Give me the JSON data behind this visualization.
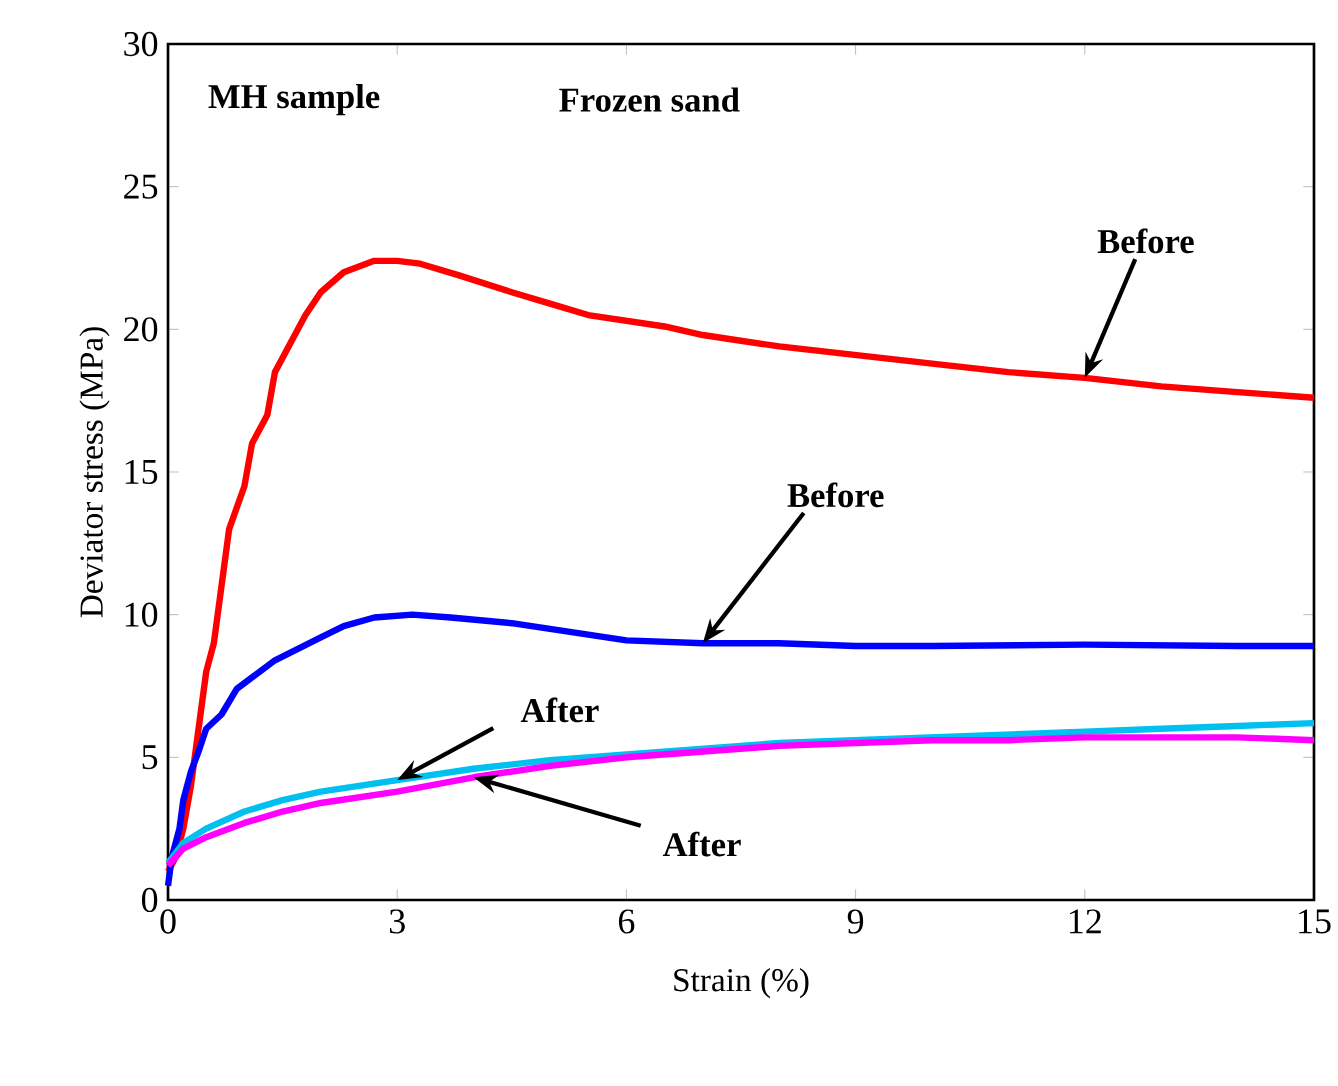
{
  "chart_data": {
    "type": "line",
    "xlabel": "Strain (%)",
    "ylabel": "Deviator stress (MPa)",
    "annotations": [
      "MH sample",
      "Frozen sand"
    ],
    "xlim": [
      0,
      15
    ],
    "ylim": [
      0,
      30
    ],
    "xticks": [
      0,
      3,
      6,
      9,
      12,
      15
    ],
    "yticks": [
      0,
      5,
      10,
      15,
      20,
      25,
      30
    ],
    "grid": false,
    "legend": false,
    "marker": "none",
    "line_style": "solid",
    "series": [
      {
        "name": "Before",
        "color": "#ff0000",
        "x": [
          0,
          0.1,
          0.2,
          0.3,
          0.4,
          0.5,
          0.6,
          0.7,
          0.8,
          1.0,
          1.1,
          1.3,
          1.4,
          1.6,
          1.8,
          2.0,
          2.3,
          2.7,
          3.0,
          3.3,
          3.8,
          4.5,
          5,
          5.5,
          6,
          6.5,
          7,
          8,
          9,
          10,
          11,
          12,
          13,
          14,
          15
        ],
        "values": [
          1,
          1.5,
          2.5,
          4,
          6,
          8,
          9,
          11,
          13,
          14.5,
          16,
          17,
          18.5,
          19.5,
          20.5,
          21.3,
          22,
          22.4,
          22.4,
          22.3,
          21.9,
          21.3,
          20.9,
          20.5,
          20.3,
          20.1,
          19.8,
          19.4,
          19.1,
          18.8,
          18.5,
          18.3,
          18,
          17.8,
          17.6
        ]
      },
      {
        "name": "Before",
        "color": "#0000ff",
        "x": [
          0,
          0.05,
          0.15,
          0.2,
          0.3,
          0.4,
          0.5,
          0.7,
          0.9,
          1.1,
          1.4,
          1.7,
          2.0,
          2.3,
          2.7,
          3.2,
          3.7,
          4.5,
          5,
          5.5,
          6,
          7,
          8,
          9,
          10,
          12,
          14,
          15
        ],
        "values": [
          0.5,
          1.5,
          2.5,
          3.5,
          4.5,
          5.2,
          6,
          6.5,
          7.4,
          7.8,
          8.4,
          8.8,
          9.2,
          9.6,
          9.9,
          10,
          9.9,
          9.7,
          9.5,
          9.3,
          9.1,
          9.0,
          9.0,
          8.9,
          8.9,
          8.95,
          8.9,
          8.9
        ]
      },
      {
        "name": "After",
        "color": "#00c0f0",
        "x": [
          0,
          0.2,
          0.5,
          1,
          1.5,
          2,
          3,
          4,
          5,
          6,
          7,
          8,
          9,
          10,
          11,
          12,
          13,
          14,
          15
        ],
        "values": [
          1.3,
          2,
          2.5,
          3.1,
          3.5,
          3.8,
          4.2,
          4.6,
          4.9,
          5.1,
          5.3,
          5.5,
          5.6,
          5.7,
          5.8,
          5.9,
          6,
          6.1,
          6.2
        ]
      },
      {
        "name": "After",
        "color": "#ff00ff",
        "x": [
          0,
          0.2,
          0.5,
          1,
          1.5,
          2,
          3,
          4,
          5,
          6,
          7,
          8,
          9,
          10,
          11,
          12,
          13,
          14,
          15
        ],
        "values": [
          1.2,
          1.8,
          2.2,
          2.7,
          3.1,
          3.4,
          3.8,
          4.3,
          4.7,
          5,
          5.2,
          5.4,
          5.5,
          5.6,
          5.6,
          5.7,
          5.7,
          5.7,
          5.6
        ]
      }
    ]
  }
}
